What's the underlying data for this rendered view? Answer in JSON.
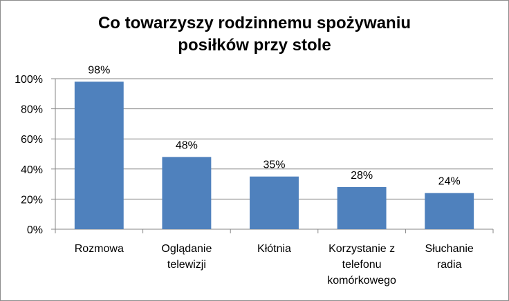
{
  "chart_data": {
    "type": "bar",
    "title_lines": [
      "Co towarzyszy rodzinnemu spożywaniu",
      "posiłków przy stole"
    ],
    "categories": [
      [
        "Rozmowa"
      ],
      [
        "Oglądanie",
        "telewizji"
      ],
      [
        "Kłótnia"
      ],
      [
        "Korzystanie z",
        "telefonu",
        "komórkowego"
      ],
      [
        "Słuchanie",
        "radia"
      ]
    ],
    "values": [
      98,
      48,
      35,
      28,
      24
    ],
    "data_labels": [
      "98%",
      "48%",
      "35%",
      "28%",
      "24%"
    ],
    "ylim": [
      0,
      100
    ],
    "yticks": [
      0,
      20,
      40,
      60,
      80,
      100
    ],
    "ytick_labels": [
      "0%",
      "20%",
      "40%",
      "60%",
      "80%",
      "100%"
    ],
    "grid": true,
    "legend": "none",
    "bar_color": "#4f81bd",
    "grid_color": "#868686"
  }
}
